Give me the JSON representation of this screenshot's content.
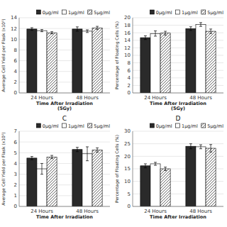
{
  "chart_data": [
    {
      "type": "bar",
      "ylabel": "Average Cell Yield per Flask (x10⁵)",
      "xlabel": "Time After Irradiation\n(5Gy)",
      "categories": [
        "24 Hours",
        "48 Hours"
      ],
      "series": [
        {
          "name": "0μg/ml",
          "color": "#2a2a2a",
          "values": [
            11.9,
            11.9
          ],
          "errors": [
            0.25,
            0.4
          ]
        },
        {
          "name": "1μg/ml",
          "color": "white",
          "values": [
            11.6,
            11.5
          ],
          "errors": [
            0.2,
            0.25
          ]
        },
        {
          "name": "5μg/ml",
          "color": "white",
          "values": [
            11.2,
            12.1
          ],
          "errors": [
            0.2,
            0.3
          ]
        }
      ],
      "ylim": [
        0,
        14
      ],
      "yticks": [
        0,
        2,
        4,
        6,
        8,
        10,
        12,
        14
      ],
      "grid": true,
      "legend": "upper right"
    },
    {
      "type": "bar",
      "ylabel": "Percentage of Floating Cells (%)",
      "xlabel": "Time After Irradiation\n(5Gy)",
      "categories": [
        "24 Hours",
        "48 Hours"
      ],
      "series": [
        {
          "name": "0μg/ml",
          "color": "#2a2a2a",
          "values": [
            14.7,
            17.1
          ],
          "errors": [
            0.5,
            0.5
          ]
        },
        {
          "name": "1μg/ml",
          "color": "white",
          "values": [
            15.8,
            18.2
          ],
          "errors": [
            0.7,
            0.5
          ]
        },
        {
          "name": "5μg/ml",
          "color": "white",
          "values": [
            15.9,
            16.4
          ],
          "errors": [
            0.5,
            0.6
          ]
        }
      ],
      "ylim": [
        0,
        20
      ],
      "yticks": [
        0,
        2,
        4,
        6,
        8,
        10,
        12,
        14,
        16,
        18,
        20
      ],
      "grid": true,
      "legend": "upper right"
    },
    {
      "type": "bar",
      "title": "C",
      "ylabel": "Average Cell Yield per Flask (x10⁵)",
      "xlabel": "Time After Irradiation",
      "categories": [
        "24 Hours",
        "48 Hours"
      ],
      "series": [
        {
          "name": "0μg/ml",
          "color": "#2a2a2a",
          "values": [
            4.5,
            5.3
          ],
          "errors": [
            0.15,
            0.2
          ]
        },
        {
          "name": "1μg/ml",
          "color": "white",
          "values": [
            3.5,
            4.9
          ],
          "errors": [
            0.5,
            0.65
          ]
        },
        {
          "name": "5μg/ml",
          "color": "white",
          "values": [
            4.6,
            5.25
          ],
          "errors": [
            0.15,
            0.2
          ]
        }
      ],
      "ylim": [
        0,
        7
      ],
      "yticks": [
        0,
        1,
        2,
        3,
        4,
        5,
        6,
        7
      ],
      "grid": true,
      "legend": "upper right"
    },
    {
      "type": "bar",
      "title": "D",
      "ylabel": "Percentage of Floating Cells (%)",
      "xlabel": "Time After Irradiation",
      "categories": [
        "24 Hours",
        "48 Hours"
      ],
      "series": [
        {
          "name": "0μg/ml",
          "color": "#2a2a2a",
          "values": [
            16.2,
            24.0
          ],
          "errors": [
            0.8,
            1.0
          ]
        },
        {
          "name": "1μg/ml",
          "color": "white",
          "values": [
            17.0,
            23.8
          ],
          "errors": [
            0.6,
            0.8
          ]
        },
        {
          "name": "5μg/ml",
          "color": "white",
          "values": [
            15.0,
            23.2
          ],
          "errors": [
            0.7,
            1.5
          ]
        }
      ],
      "ylim": [
        0,
        30
      ],
      "yticks": [
        0,
        5,
        10,
        15,
        20,
        25,
        30
      ],
      "grid": true,
      "legend": "upper right"
    }
  ]
}
